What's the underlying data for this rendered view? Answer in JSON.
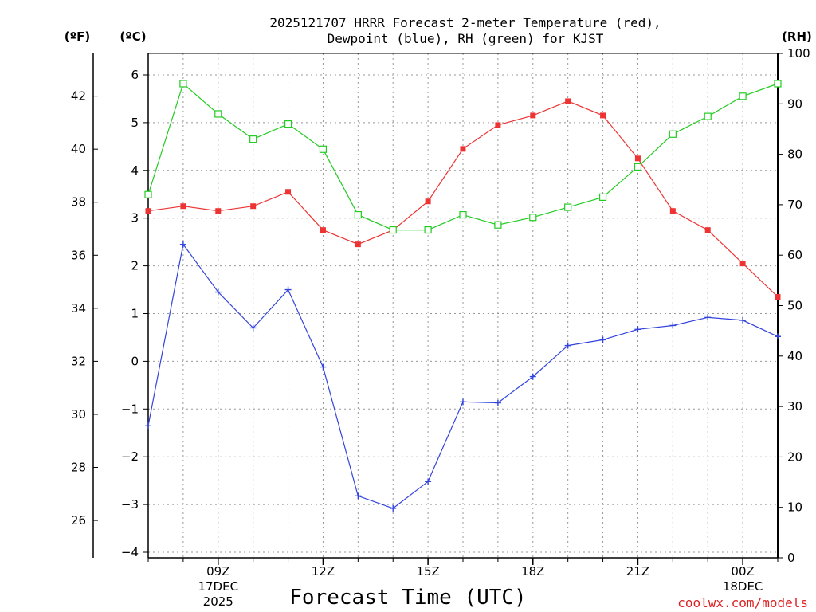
{
  "chart_data": {
    "type": "line",
    "title_line1": "2025121707 HRRR Forecast 2-meter Temperature (red),",
    "title_line2": "Dewpoint (blue), RH (green) for KJST",
    "unit_f": "(ºF)",
    "unit_c": "(ºC)",
    "unit_rh": "(RH)",
    "xlabel": "Forecast Time (UTC)",
    "credit": "coolwx.com/models",
    "hours": [
      7,
      8,
      9,
      10,
      11,
      12,
      13,
      14,
      15,
      16,
      17,
      18,
      19,
      20,
      21,
      22,
      23,
      24,
      25
    ],
    "x_ticks": [
      {
        "hour": 9,
        "label": "09Z",
        "date1": "17DEC",
        "date2": "2025"
      },
      {
        "hour": 12,
        "label": "12Z"
      },
      {
        "hour": 15,
        "label": "15Z"
      },
      {
        "hour": 18,
        "label": "18Z"
      },
      {
        "hour": 21,
        "label": "21Z"
      },
      {
        "hour": 24,
        "label": "00Z",
        "date1": "18DEC"
      }
    ],
    "c_axis": {
      "min": -4,
      "max": 6,
      "ticks": [
        "-4",
        "-3",
        "-2",
        "-1",
        "0",
        "1",
        "2",
        "3",
        "4",
        "5",
        "6"
      ]
    },
    "f_axis": {
      "ticks": [
        "26",
        "28",
        "30",
        "32",
        "34",
        "36",
        "38",
        "40",
        "42"
      ]
    },
    "rh_axis": {
      "min": 0,
      "max": 100,
      "ticks": [
        "0",
        "10",
        "20",
        "30",
        "40",
        "50",
        "60",
        "70",
        "80",
        "90",
        "100"
      ]
    },
    "series": [
      {
        "name": "Temperature",
        "unit": "C",
        "color": "#ee3333",
        "marker": "square-filled",
        "values": [
          3.15,
          3.25,
          3.15,
          3.25,
          3.55,
          2.75,
          2.45,
          2.75,
          3.35,
          4.45,
          4.95,
          5.15,
          5.45,
          5.15,
          4.25,
          3.15,
          2.75,
          2.05,
          1.35
        ]
      },
      {
        "name": "Dewpoint",
        "unit": "C",
        "color": "#3344dd",
        "marker": "plus",
        "values": [
          -1.35,
          2.45,
          1.45,
          0.7,
          1.5,
          -0.12,
          -2.82,
          -3.08,
          -2.52,
          -0.85,
          -0.87,
          -0.32,
          0.33,
          0.45,
          0.67,
          0.75,
          0.92,
          0.86,
          0.52
        ]
      },
      {
        "name": "RH",
        "unit": "%",
        "color": "#22cc22",
        "marker": "square-open",
        "values": [
          72,
          94,
          88,
          83,
          86,
          81,
          68,
          65,
          65,
          68,
          66,
          67.5,
          69.5,
          71.5,
          77.5,
          84,
          87.5,
          91.5,
          94
        ]
      }
    ]
  }
}
